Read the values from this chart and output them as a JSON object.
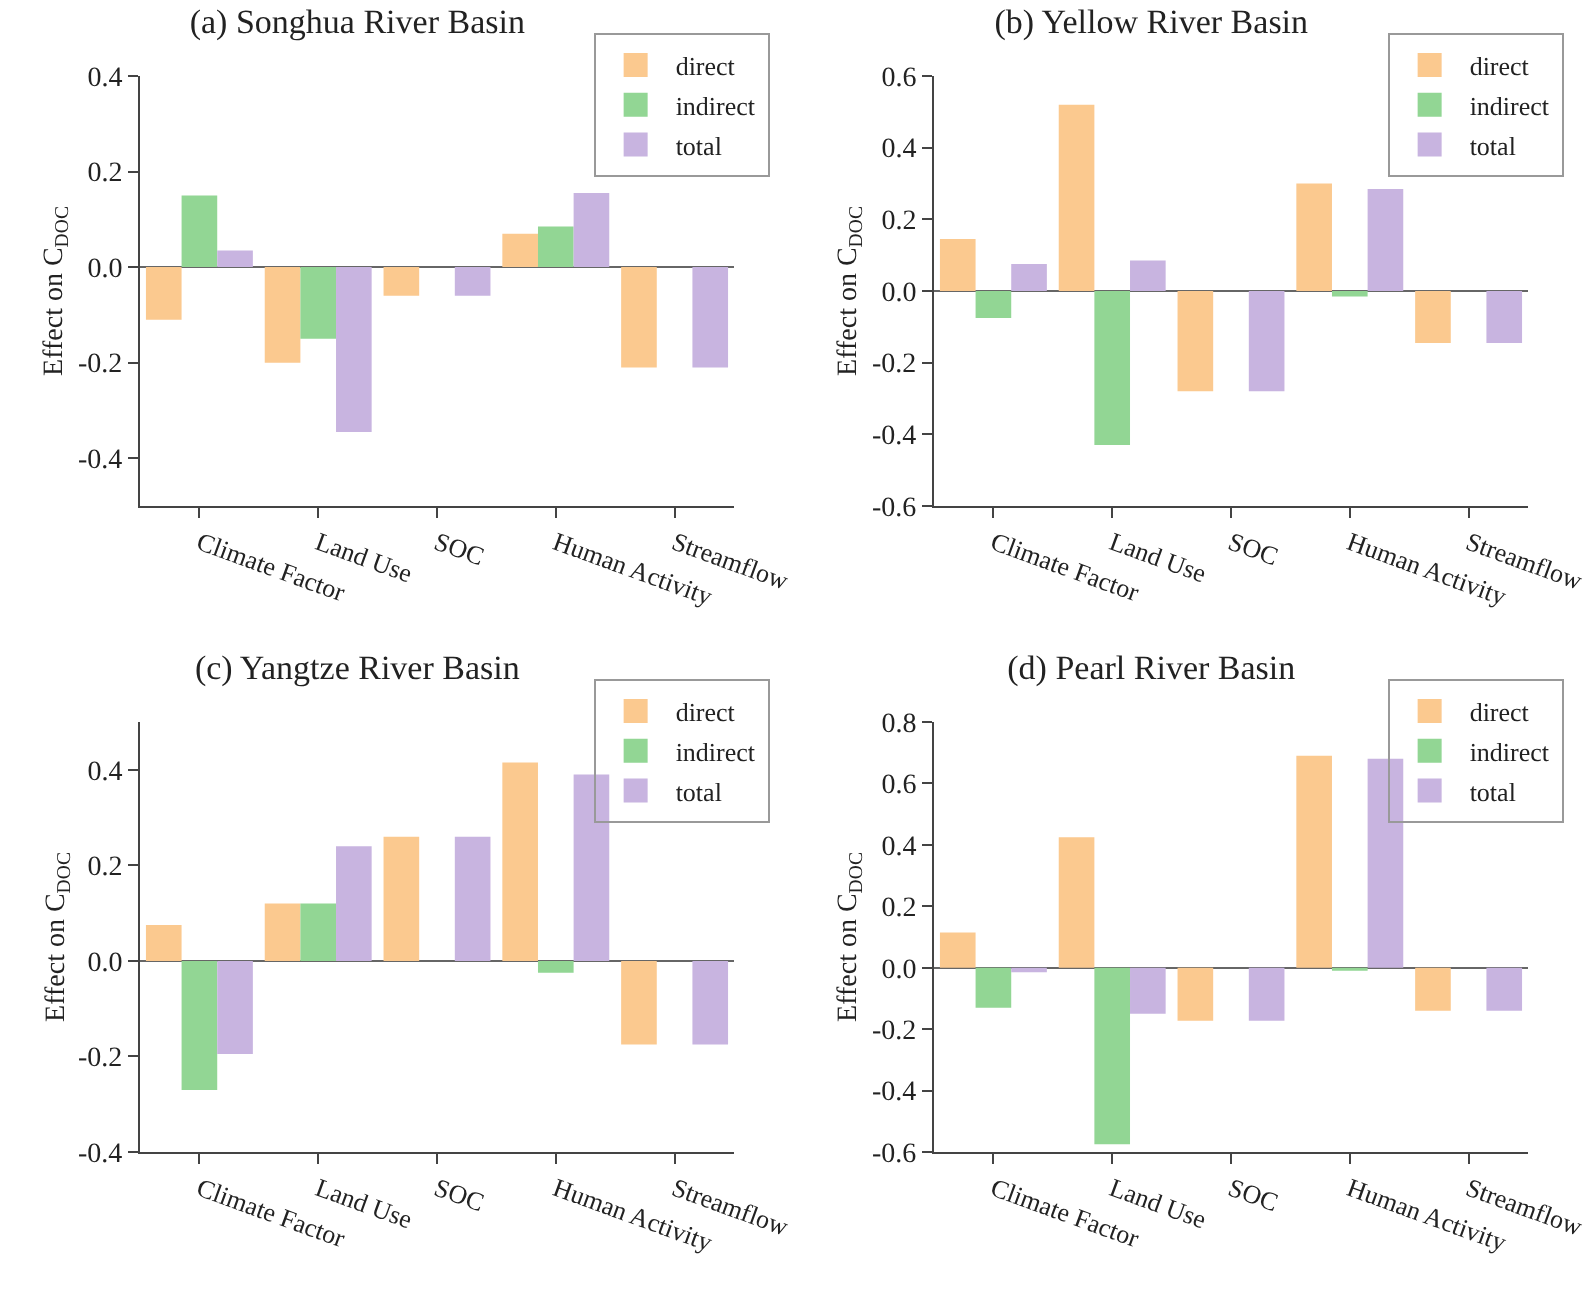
{
  "chart_data": [
    {
      "type": "bar",
      "title": "(a) Songhua River Basin",
      "ylabel": "Effect on C$_{DOC}$",
      "categories": [
        "Climate Factor",
        "Land Use",
        "SOC",
        "Human Activity",
        "Streamflow"
      ],
      "legend": "top right",
      "ylim": [
        -0.5,
        0.4
      ],
      "yticks": [
        {
          "value": -0.4,
          "label": "-0.4"
        },
        {
          "value": -0.2,
          "label": "-0.2"
        },
        {
          "value": 0,
          "label": "0.0"
        },
        {
          "value": 0.2,
          "label": "0.2"
        },
        {
          "value": 0.4,
          "label": "0.4"
        }
      ],
      "series": [
        {
          "name": "direct",
          "color": "#fbc98f",
          "values": [
            -0.11,
            -0.2,
            -0.06,
            0.07,
            -0.21
          ]
        },
        {
          "name": "indirect",
          "color": "#92d694",
          "values": [
            0.15,
            -0.15,
            null,
            0.085,
            null
          ]
        },
        {
          "name": "total",
          "color": "#c8b4e0",
          "values": [
            0.035,
            -0.345,
            -0.06,
            0.155,
            -0.21
          ]
        }
      ]
    },
    {
      "type": "bar",
      "title": "(b) Yellow River Basin",
      "ylabel": "Effect on C$_{DOC}$",
      "categories": [
        "Climate Factor",
        "Land Use",
        "SOC",
        "Human Activity",
        "Streamflow"
      ],
      "legend": "top right",
      "ylim": [
        -0.6,
        0.6
      ],
      "yticks": [
        {
          "value": -0.6,
          "label": "-0.6"
        },
        {
          "value": -0.4,
          "label": "-0.4"
        },
        {
          "value": -0.2,
          "label": "-0.2"
        },
        {
          "value": 0,
          "label": "0.0"
        },
        {
          "value": 0.2,
          "label": "0.2"
        },
        {
          "value": 0.4,
          "label": "0.4"
        },
        {
          "value": 0.6,
          "label": "0.6"
        }
      ],
      "series": [
        {
          "name": "direct",
          "color": "#fbc98f",
          "values": [
            0.145,
            0.52,
            -0.28,
            0.3,
            -0.145
          ]
        },
        {
          "name": "indirect",
          "color": "#92d694",
          "values": [
            -0.075,
            -0.43,
            null,
            -0.015,
            null
          ]
        },
        {
          "name": "total",
          "color": "#c8b4e0",
          "values": [
            0.075,
            0.085,
            -0.28,
            0.285,
            -0.145
          ]
        }
      ]
    },
    {
      "type": "bar",
      "title": "(c) Yangtze River Basin",
      "ylabel": "Effect on C$_{DOC}$",
      "categories": [
        "Climate Factor",
        "Land Use",
        "SOC",
        "Human Activity",
        "Streamflow"
      ],
      "legend": "top right",
      "ylim": [
        -0.4,
        0.5
      ],
      "yticks": [
        {
          "value": -0.4,
          "label": "-0.4"
        },
        {
          "value": -0.2,
          "label": "-0.2"
        },
        {
          "value": 0,
          "label": "0.0"
        },
        {
          "value": 0.2,
          "label": "0.2"
        },
        {
          "value": 0.4,
          "label": "0.4"
        }
      ],
      "series": [
        {
          "name": "direct",
          "color": "#fbc98f",
          "values": [
            0.075,
            0.12,
            0.26,
            0.415,
            -0.175
          ]
        },
        {
          "name": "indirect",
          "color": "#92d694",
          "values": [
            -0.27,
            0.12,
            null,
            -0.025,
            null
          ]
        },
        {
          "name": "total",
          "color": "#c8b4e0",
          "values": [
            -0.195,
            0.24,
            0.26,
            0.39,
            -0.175
          ]
        }
      ]
    },
    {
      "type": "bar",
      "title": "(d) Pearl River Basin",
      "ylabel": "Effect on C$_{DOC}$",
      "categories": [
        "Climate Factor",
        "Land Use",
        "SOC",
        "Human Activity",
        "Streamflow"
      ],
      "legend": "top right",
      "ylim": [
        -0.6,
        0.8
      ],
      "yticks": [
        {
          "value": -0.6,
          "label": "-0.6"
        },
        {
          "value": -0.4,
          "label": "-0.4"
        },
        {
          "value": -0.2,
          "label": "-0.2"
        },
        {
          "value": 0,
          "label": "0.0"
        },
        {
          "value": 0.2,
          "label": "0.2"
        },
        {
          "value": 0.4,
          "label": "0.4"
        },
        {
          "value": 0.6,
          "label": "0.6"
        },
        {
          "value": 0.8,
          "label": "0.8"
        }
      ],
      "series": [
        {
          "name": "direct",
          "color": "#fbc98f",
          "values": [
            0.115,
            0.425,
            -0.173,
            0.69,
            -0.14
          ]
        },
        {
          "name": "indirect",
          "color": "#92d694",
          "values": [
            -0.13,
            -0.575,
            null,
            -0.01,
            null
          ]
        },
        {
          "name": "total",
          "color": "#c8b4e0",
          "values": [
            -0.015,
            -0.15,
            -0.173,
            0.68,
            -0.14
          ]
        }
      ]
    }
  ]
}
